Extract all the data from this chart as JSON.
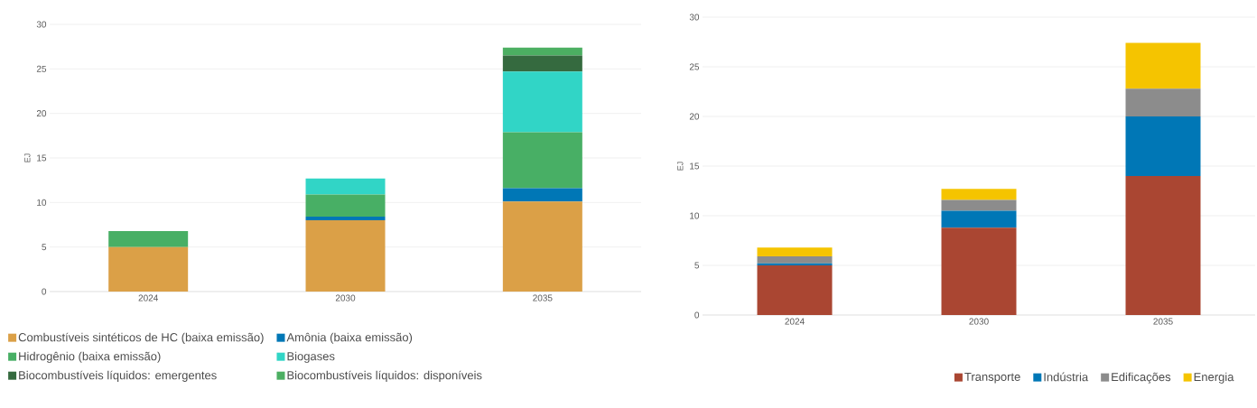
{
  "chart_data": [
    {
      "type": "bar",
      "stacked": true,
      "ylabel": "EJ",
      "categories": [
        "2024",
        "2030",
        "2035"
      ],
      "ylim": [
        0,
        30
      ],
      "yticks": [
        0,
        5,
        10,
        15,
        20,
        25,
        30
      ],
      "grid": "y",
      "legend": "bottom",
      "series": [
        {
          "name": "Combustíveis sintéticos de HC (baixa emissão)",
          "color": "#dba047",
          "values": [
            5.0,
            8.0,
            10.1
          ]
        },
        {
          "name": "Amônia (baixa emissão)",
          "color": "#0077b6",
          "values": [
            0,
            0.4,
            1.5
          ]
        },
        {
          "name": "Hidrogênio (baixa emissão)",
          "color": "#48af65",
          "values": [
            1.8,
            2.5,
            6.3
          ]
        },
        {
          "name": "Biogases",
          "color": "#31d5c6",
          "values": [
            0,
            1.8,
            6.8
          ]
        },
        {
          "name": "Biocombustíveis líquidos: emergentes",
          "color": "#356a3f",
          "values": [
            0,
            0,
            1.8
          ]
        },
        {
          "name": "Biocombustíveis líquidos: disponíveis",
          "color": "#4caf62",
          "values": [
            0,
            0,
            0.9
          ]
        }
      ]
    },
    {
      "type": "bar",
      "stacked": true,
      "ylabel": "EJ",
      "categories": [
        "2024",
        "2030",
        "2035"
      ],
      "ylim": [
        0,
        30
      ],
      "yticks": [
        0,
        5,
        10,
        15,
        20,
        25,
        30
      ],
      "grid": "y",
      "legend": "bottom",
      "series": [
        {
          "name": "Transporte",
          "color": "#aa4632",
          "values": [
            5.0,
            8.8,
            14.0
          ]
        },
        {
          "name": "Indústria",
          "color": "#0077b6",
          "values": [
            0.2,
            1.7,
            6.0
          ]
        },
        {
          "name": "Edificações",
          "color": "#8c8c8c",
          "values": [
            0.7,
            1.1,
            2.8
          ]
        },
        {
          "name": "Energia",
          "color": "#f5c400",
          "values": [
            0.9,
            1.1,
            4.6
          ]
        }
      ]
    }
  ]
}
